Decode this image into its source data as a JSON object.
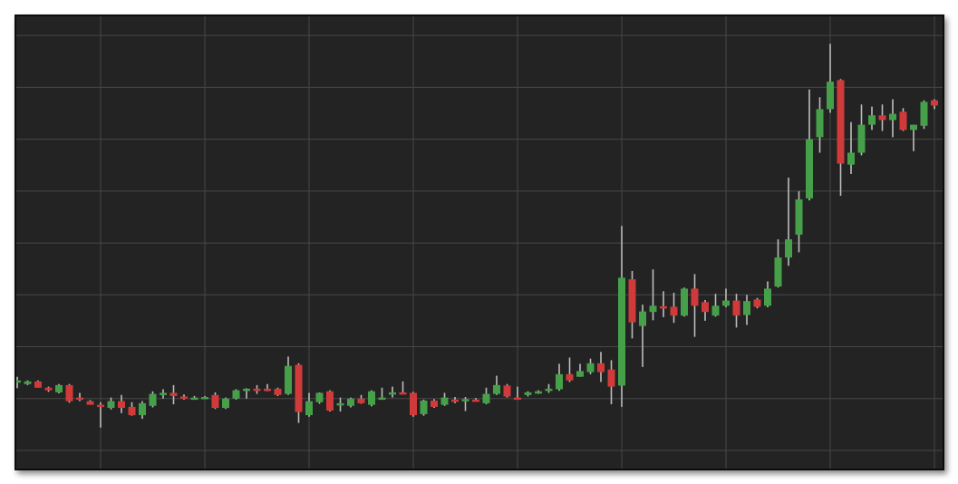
{
  "chart_data": {
    "type": "candlestick",
    "title": "",
    "xlabel": "",
    "ylabel": "",
    "ylim": [
      -3.5,
      83.7
    ],
    "grid": true,
    "y_gridlines": [
      0,
      10,
      20,
      30,
      40,
      50,
      60,
      70,
      80
    ],
    "x_gridline_every": 10,
    "colors": {
      "background": "#232323",
      "grid": "#474747",
      "up": "#45a049",
      "down": "#d03a3a",
      "wick": "#bdbdbd"
    },
    "candles": [
      [
        13.4,
        14.2,
        12.0,
        13.5
      ],
      [
        12.8,
        13.5,
        12.6,
        13.3
      ],
      [
        13.3,
        13.5,
        12.1,
        12.1
      ],
      [
        12.1,
        12.3,
        11.3,
        11.6
      ],
      [
        11.2,
        12.8,
        11.0,
        12.6
      ],
      [
        12.6,
        12.8,
        9.2,
        9.5
      ],
      [
        10.2,
        11.1,
        9.5,
        10.0
      ],
      [
        9.5,
        9.7,
        8.8,
        8.8
      ],
      [
        8.8,
        9.3,
        4.4,
        8.4
      ],
      [
        8.2,
        10.2,
        7.9,
        9.5
      ],
      [
        9.5,
        10.7,
        7.2,
        8.2
      ],
      [
        8.4,
        9.3,
        6.7,
        6.8
      ],
      [
        6.8,
        9.5,
        6.1,
        9.1
      ],
      [
        8.6,
        11.4,
        8.3,
        10.9
      ],
      [
        11.0,
        11.8,
        10.0,
        11.1
      ],
      [
        11.1,
        12.6,
        8.9,
        10.5
      ],
      [
        10.4,
        10.8,
        9.8,
        10.2
      ],
      [
        10.0,
        10.5,
        9.8,
        10.2
      ],
      [
        10.3,
        10.5,
        10.0,
        10.3
      ],
      [
        10.7,
        11.2,
        8.0,
        8.2
      ],
      [
        8.2,
        10.2,
        8.0,
        10.0
      ],
      [
        10.0,
        11.8,
        9.8,
        11.6
      ],
      [
        11.9,
        12.0,
        10.0,
        11.9
      ],
      [
        11.9,
        12.6,
        10.9,
        11.8
      ],
      [
        11.9,
        12.8,
        11.4,
        11.8
      ],
      [
        11.9,
        12.1,
        10.5,
        10.7
      ],
      [
        10.9,
        18.1,
        10.7,
        16.3
      ],
      [
        16.5,
        16.8,
        5.3,
        7.4
      ],
      [
        6.8,
        11.1,
        6.5,
        9.5
      ],
      [
        9.3,
        11.2,
        9.0,
        11.1
      ],
      [
        11.4,
        11.6,
        7.5,
        7.7
      ],
      [
        9.1,
        10.2,
        7.5,
        9.1
      ],
      [
        8.6,
        10.2,
        8.3,
        10.0
      ],
      [
        10.0,
        10.7,
        9.0,
        9.1
      ],
      [
        8.8,
        11.6,
        8.5,
        11.4
      ],
      [
        10.1,
        12.1,
        10.0,
        10.2
      ],
      [
        11.2,
        12.3,
        10.2,
        11.2
      ],
      [
        11.2,
        13.3,
        10.9,
        11.1
      ],
      [
        11.1,
        11.3,
        6.5,
        6.8
      ],
      [
        7.0,
        9.8,
        6.7,
        9.6
      ],
      [
        9.6,
        9.9,
        8.2,
        8.4
      ],
      [
        8.8,
        11.1,
        8.6,
        10.2
      ],
      [
        9.8,
        10.3,
        9.1,
        9.6
      ],
      [
        9.7,
        10.3,
        7.6,
        9.9
      ],
      [
        9.8,
        10.1,
        9.4,
        9.5
      ],
      [
        9.1,
        12.1,
        8.9,
        10.9
      ],
      [
        10.9,
        14.4,
        10.7,
        12.6
      ],
      [
        12.5,
        12.8,
        10.2,
        10.4
      ],
      [
        10.2,
        12.3,
        9.8,
        10.0
      ],
      [
        10.7,
        11.4,
        10.4,
        11.2
      ],
      [
        11.2,
        11.6,
        10.9,
        11.4
      ],
      [
        11.6,
        12.8,
        11.1,
        11.9
      ],
      [
        11.8,
        16.7,
        11.5,
        14.7
      ],
      [
        14.7,
        17.9,
        13.2,
        13.5
      ],
      [
        14.2,
        16.7,
        14.2,
        15.3
      ],
      [
        15.1,
        17.7,
        14.7,
        16.8
      ],
      [
        16.8,
        19.0,
        13.2,
        15.1
      ],
      [
        15.6,
        17.4,
        8.9,
        12.3
      ],
      [
        12.5,
        43.3,
        8.4,
        33.3
      ],
      [
        33.0,
        34.6,
        21.6,
        24.7
      ],
      [
        24.0,
        28.1,
        16.1,
        26.8
      ],
      [
        26.7,
        34.9,
        25.1,
        27.9
      ],
      [
        27.8,
        30.7,
        25.7,
        27.6
      ],
      [
        27.7,
        30.4,
        24.6,
        26.0
      ],
      [
        26.0,
        31.4,
        25.8,
        31.2
      ],
      [
        31.2,
        34.0,
        21.9,
        27.9
      ],
      [
        28.6,
        29.0,
        25.0,
        26.7
      ],
      [
        26.0,
        30.2,
        25.8,
        27.9
      ],
      [
        27.9,
        31.2,
        27.6,
        28.9
      ],
      [
        28.9,
        30.2,
        23.7,
        26.0
      ],
      [
        26.1,
        30.0,
        24.2,
        28.8
      ],
      [
        29.1,
        29.4,
        27.4,
        27.7
      ],
      [
        27.9,
        32.6,
        27.6,
        31.2
      ],
      [
        31.6,
        40.7,
        31.4,
        37.2
      ],
      [
        37.2,
        52.6,
        35.6,
        40.7
      ],
      [
        41.6,
        50.0,
        38.2,
        48.4
      ],
      [
        48.6,
        69.6,
        48.2,
        60.0
      ],
      [
        60.4,
        68.1,
        57.4,
        65.8
      ],
      [
        65.8,
        78.4,
        65.1,
        71.1
      ],
      [
        71.4,
        71.6,
        49.1,
        55.3
      ],
      [
        55.1,
        63.3,
        53.3,
        57.4
      ],
      [
        57.4,
        66.7,
        56.9,
        62.8
      ],
      [
        62.8,
        66.3,
        61.8,
        64.6
      ],
      [
        64.6,
        66.7,
        61.6,
        63.7
      ],
      [
        63.7,
        67.7,
        60.4,
        64.9
      ],
      [
        65.3,
        66.0,
        61.6,
        61.8
      ],
      [
        61.8,
        62.8,
        57.7,
        62.8
      ],
      [
        62.6,
        67.5,
        62.0,
        67.2
      ],
      [
        67.5,
        67.7,
        65.8,
        66.5
      ]
    ]
  }
}
